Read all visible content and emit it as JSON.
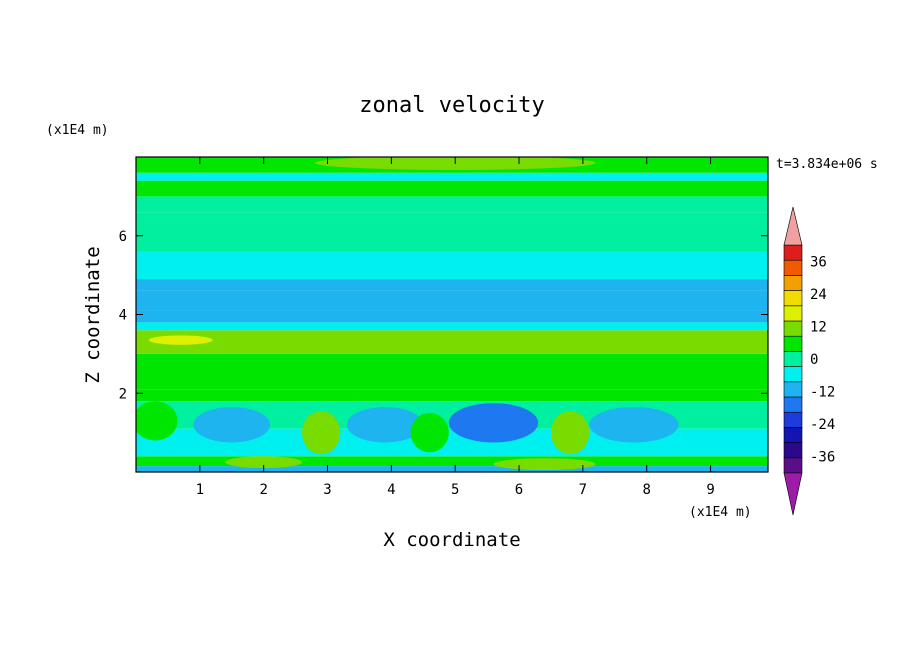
{
  "chart_data": {
    "type": "heatmap",
    "title": "zonal velocity",
    "xlabel": "X coordinate",
    "ylabel": "Z coordinate",
    "x_unit": "(x1E4 m)",
    "y_unit": "(x1E4 m)",
    "time_label": "t=3.834e+06 s",
    "xlim": [
      0,
      9.9
    ],
    "ylim": [
      0,
      8
    ],
    "x_ticks": [
      1,
      2,
      3,
      4,
      5,
      6,
      7,
      8,
      9
    ],
    "y_ticks": [
      2,
      4,
      6
    ],
    "colorbar": {
      "levels": [
        -42,
        -36,
        -30,
        -24,
        -18,
        -12,
        -6,
        0,
        6,
        12,
        18,
        24,
        30,
        36,
        42
      ],
      "colors": [
        "#5a0e88",
        "#2a0a8a",
        "#1414b4",
        "#1e3cdc",
        "#1e78f0",
        "#1eb4f0",
        "#00f0f0",
        "#00f0a0",
        "#00e600",
        "#78dc00",
        "#dcf000",
        "#f0dc00",
        "#f0a000",
        "#f05a00",
        "#dc1e1e"
      ],
      "under_color": "#9c1ca8",
      "over_color": "#f0a0a0",
      "tick_labels": [
        "36",
        "24",
        "12",
        "0",
        "-12",
        "-24",
        "-36"
      ]
    },
    "bands": [
      {
        "z": [
          0.0,
          0.15
        ],
        "value": -8
      },
      {
        "z": [
          0.15,
          0.4
        ],
        "value": 9
      },
      {
        "z": [
          0.4,
          1.1
        ],
        "value": -4
      },
      {
        "z": [
          1.1,
          1.8
        ],
        "value": 4
      },
      {
        "z": [
          1.8,
          2.1
        ],
        "value": 8
      },
      {
        "z": [
          2.1,
          3.0
        ],
        "value": 11
      },
      {
        "z": [
          3.0,
          3.6
        ],
        "value": 14
      },
      {
        "z": [
          3.6,
          3.8
        ],
        "value": -2
      },
      {
        "z": [
          3.8,
          4.1
        ],
        "value": -9
      },
      {
        "z": [
          4.1,
          4.6
        ],
        "value": -12
      },
      {
        "z": [
          4.6,
          4.9
        ],
        "value": -8
      },
      {
        "z": [
          4.9,
          5.6
        ],
        "value": -3
      },
      {
        "z": [
          5.6,
          6.6
        ],
        "value": 1
      },
      {
        "z": [
          6.6,
          7.0
        ],
        "value": 2
      },
      {
        "z": [
          7.0,
          7.4
        ],
        "value": 6
      },
      {
        "z": [
          7.4,
          7.6
        ],
        "value": -3
      },
      {
        "z": [
          7.6,
          8.0
        ],
        "value": 8
      }
    ],
    "blobs": [
      {
        "x": 1.5,
        "z": 1.2,
        "rx": 0.6,
        "rz": 0.45,
        "value": -9
      },
      {
        "x": 3.9,
        "z": 1.2,
        "rx": 0.6,
        "rz": 0.45,
        "value": -8
      },
      {
        "x": 5.6,
        "z": 1.25,
        "rx": 0.7,
        "rz": 0.5,
        "value": -13
      },
      {
        "x": 7.8,
        "z": 1.2,
        "rx": 0.7,
        "rz": 0.45,
        "value": -7
      },
      {
        "x": 2.9,
        "z": 1.0,
        "rx": 0.3,
        "rz": 0.55,
        "value": 12
      },
      {
        "x": 4.6,
        "z": 1.0,
        "rx": 0.3,
        "rz": 0.5,
        "value": 10
      },
      {
        "x": 6.8,
        "z": 1.0,
        "rx": 0.3,
        "rz": 0.55,
        "value": 13
      },
      {
        "x": 0.3,
        "z": 1.3,
        "rx": 0.35,
        "rz": 0.5,
        "value": 10
      },
      {
        "x": 2.0,
        "z": 0.25,
        "rx": 0.6,
        "rz": 0.15,
        "value": 12
      },
      {
        "x": 6.4,
        "z": 0.2,
        "rx": 0.8,
        "rz": 0.15,
        "value": 14
      },
      {
        "x": 5.0,
        "z": 7.85,
        "rx": 2.2,
        "rz": 0.18,
        "value": 14
      },
      {
        "x": 0.7,
        "z": 3.35,
        "rx": 0.5,
        "rz": 0.12,
        "value": 18
      }
    ]
  }
}
